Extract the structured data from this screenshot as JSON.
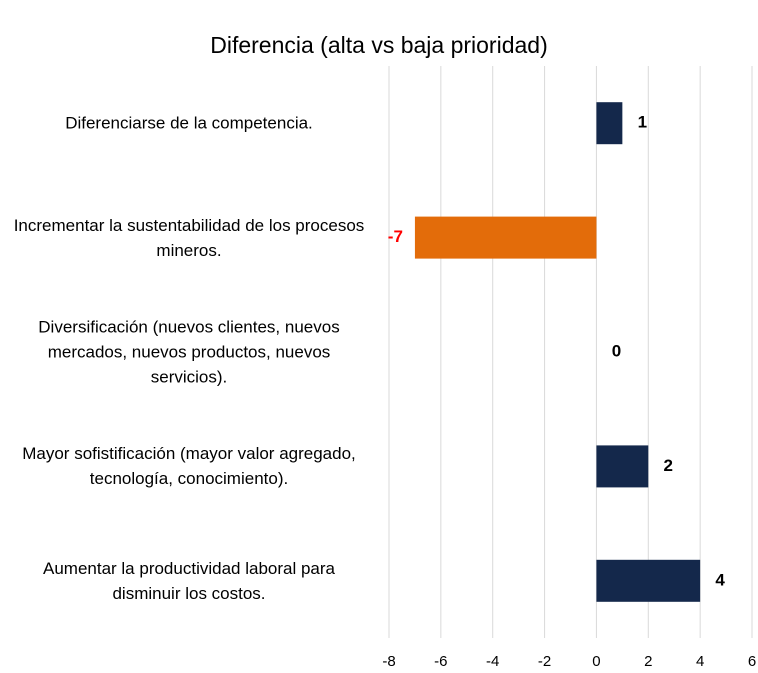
{
  "chart_data": {
    "type": "barh",
    "title": "Diferencia (alta vs baja prioridad)",
    "categories": [
      "Diferenciarse de la competencia.",
      "Incrementar la sustentabilidad de los procesos mineros.",
      "Diversificación (nuevos clientes, nuevos mercados, nuevos productos, nuevos servicios).",
      "Mayor sofistificación (mayor valor agregado, tecnología, conocimiento).",
      "Aumentar la productividad laboral para disminuir los costos."
    ],
    "values": [
      1,
      -7,
      0,
      2,
      4
    ],
    "colors": [
      "#14284b",
      "#e36c0a",
      "#14284b",
      "#14284b",
      "#14284b"
    ],
    "value_label_colors": [
      "#000000",
      "#ff0000",
      "#000000",
      "#000000",
      "#000000"
    ],
    "xlim": [
      -8,
      6
    ],
    "xticks": [
      -8,
      -6,
      -4,
      -2,
      0,
      2,
      4,
      6
    ],
    "grid": true
  }
}
